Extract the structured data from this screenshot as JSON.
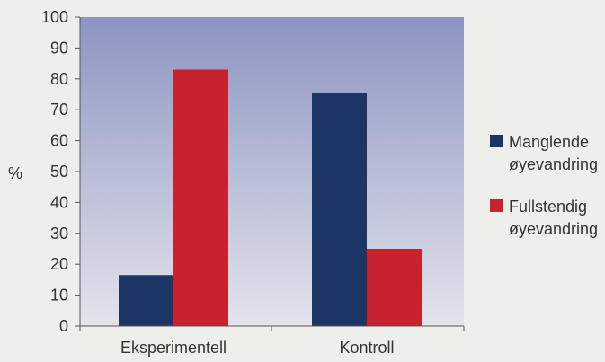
{
  "chart_data": {
    "type": "bar",
    "categories": [
      "Eksperimentell",
      "Kontroll"
    ],
    "series": [
      {
        "name": "Manglende øyevandring",
        "legend_lines": [
          "Manglende",
          "øyevandring"
        ],
        "color": "#1b3564",
        "values": [
          16.5,
          75.5
        ]
      },
      {
        "name": "Fullstendig øyevandring",
        "legend_lines": [
          "Fullstendig",
          "øyevandring"
        ],
        "color": "#c8232c",
        "values": [
          83,
          25
        ]
      }
    ],
    "ylabel": "%",
    "ylim": [
      0,
      100
    ],
    "yticks": [
      0,
      10,
      20,
      30,
      40,
      50,
      60,
      70,
      80,
      90,
      100
    ],
    "grid": false,
    "legend_position": "right",
    "background_gradient": [
      "#8c95c2",
      "#e4e4ec"
    ],
    "page_background": "#eeeeea"
  }
}
